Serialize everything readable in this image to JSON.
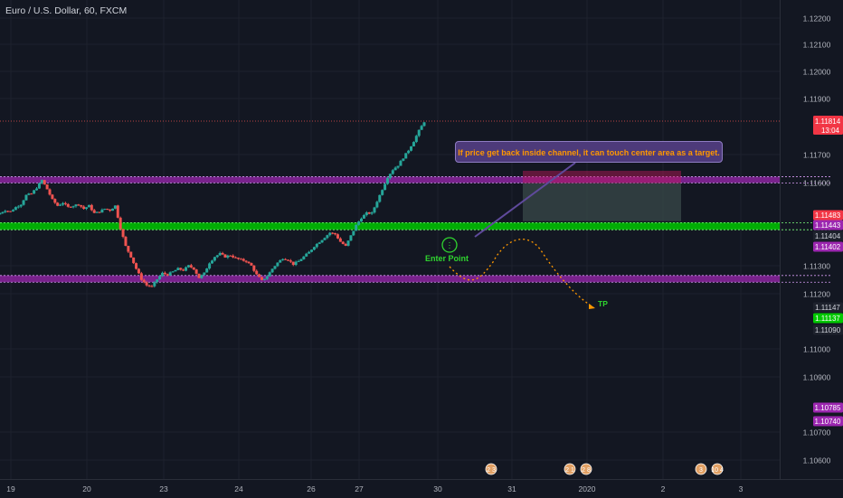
{
  "header": {
    "title": "Euro / U.S. Dollar, 60, FXCM"
  },
  "callout": {
    "text": "If price get back inside channel, it can touch center area as a target."
  },
  "labels": {
    "enter_point": "Enter Point",
    "tp": "TP"
  },
  "colors": {
    "up": "#26a69a",
    "down": "#ef5350",
    "purple_zone": "#9c27b0",
    "green_zone": "#00c800",
    "background": "#131722",
    "current_price": "#ef5350"
  },
  "current_price": {
    "value": "1.11814",
    "countdown": "13:04"
  },
  "event_markers": [
    "2 3",
    "2 1",
    "2 8",
    "3",
    "10 4"
  ],
  "chart_data": {
    "type": "candlestick",
    "title": "Euro / U.S. Dollar, 60, FXCM",
    "ylim": [
      1.1055,
      1.1228
    ],
    "y_ticks": [
      "1.12200",
      "1.12100",
      "1.12000",
      "1.11900",
      "1.11700",
      "1.11600",
      "1.11300",
      "1.11200",
      "1.11000",
      "1.10900",
      "1.10700",
      "1.10600"
    ],
    "x_ticks": [
      "19",
      "20",
      "23",
      "24",
      "26",
      "27",
      "30",
      "31",
      "2020",
      "2",
      "3"
    ],
    "price_labels": [
      {
        "text": "1.11483",
        "kind": "red"
      },
      {
        "text": "1.11443",
        "kind": "purple"
      },
      {
        "text": "1.11404",
        "kind": "dark"
      },
      {
        "text": "1.11402",
        "kind": "purple"
      },
      {
        "text": "1.11147",
        "kind": "dark"
      },
      {
        "text": "1.11137",
        "kind": "green"
      },
      {
        "text": "1.11090",
        "kind": "dark"
      },
      {
        "text": "1.10785",
        "kind": "purple"
      },
      {
        "text": "1.10740",
        "kind": "purple"
      }
    ],
    "zones": [
      {
        "name": "upper-channel",
        "color": "purple",
        "from": 1.11402,
        "to": 1.11443
      },
      {
        "name": "center-channel",
        "color": "green",
        "from": 1.1109,
        "to": 1.11137
      },
      {
        "name": "lower-channel",
        "color": "purple",
        "from": 1.1074,
        "to": 1.10785
      }
    ],
    "position": {
      "entry": 1.114,
      "stop": 1.11483,
      "target": 1.11147
    },
    "path": [
      [
        0,
        1.112
      ],
      [
        1,
        1.1122
      ],
      [
        2,
        1.1121
      ],
      [
        3,
        1.1124
      ],
      [
        4,
        1.1126
      ],
      [
        5,
        1.1132
      ],
      [
        6,
        1.1133
      ],
      [
        7,
        1.1137
      ],
      [
        8,
        1.1142
      ],
      [
        9,
        1.1136
      ],
      [
        10,
        1.1129
      ],
      [
        11,
        1.1125
      ],
      [
        12,
        1.1127
      ],
      [
        13,
        1.1124
      ],
      [
        14,
        1.1125
      ],
      [
        15,
        1.1126
      ],
      [
        16,
        1.1123
      ],
      [
        17,
        1.1125
      ],
      [
        18,
        1.112
      ],
      [
        19,
        1.1121
      ],
      [
        20,
        1.1123
      ],
      [
        21,
        1.1122
      ],
      [
        22,
        1.1125
      ],
      [
        23,
        1.111
      ],
      [
        24,
        1.1098
      ],
      [
        25,
        1.1091
      ],
      [
        26,
        1.1083
      ],
      [
        27,
        1.1076
      ],
      [
        28,
        1.1072
      ],
      [
        29,
        1.1071
      ],
      [
        30,
        1.1076
      ],
      [
        31,
        1.108
      ],
      [
        32,
        1.1079
      ],
      [
        33,
        1.1081
      ],
      [
        34,
        1.1083
      ],
      [
        35,
        1.1082
      ],
      [
        36,
        1.1085
      ],
      [
        37,
        1.1083
      ],
      [
        38,
        1.1077
      ],
      [
        39,
        1.108
      ],
      [
        40,
        1.1087
      ],
      [
        41,
        1.1091
      ],
      [
        42,
        1.1093
      ],
      [
        43,
        1.1091
      ],
      [
        44,
        1.1092
      ],
      [
        45,
        1.109
      ],
      [
        46,
        1.1089
      ],
      [
        47,
        1.1088
      ],
      [
        48,
        1.1085
      ],
      [
        49,
        1.1079
      ],
      [
        50,
        1.1075
      ],
      [
        51,
        1.1078
      ],
      [
        52,
        1.1083
      ],
      [
        53,
        1.1087
      ],
      [
        54,
        1.109
      ],
      [
        55,
        1.1089
      ],
      [
        56,
        1.1086
      ],
      [
        57,
        1.1088
      ],
      [
        58,
        1.1091
      ],
      [
        59,
        1.1094
      ],
      [
        60,
        1.1098
      ],
      [
        61,
        1.1101
      ],
      [
        62,
        1.1104
      ],
      [
        63,
        1.1107
      ],
      [
        64,
        1.1106
      ],
      [
        65,
        1.1101
      ],
      [
        66,
        1.1098
      ],
      [
        67,
        1.1105
      ],
      [
        68,
        1.1112
      ],
      [
        69,
        1.1117
      ],
      [
        70,
        1.112
      ],
      [
        71,
        1.112
      ],
      [
        72,
        1.1128
      ],
      [
        73,
        1.1136
      ],
      [
        74,
        1.1144
      ],
      [
        75,
        1.1149
      ],
      [
        76,
        1.1152
      ],
      [
        77,
        1.1157
      ],
      [
        78,
        1.1162
      ],
      [
        79,
        1.1168
      ],
      [
        80,
        1.1175
      ],
      [
        81,
        1.1181
      ]
    ]
  }
}
